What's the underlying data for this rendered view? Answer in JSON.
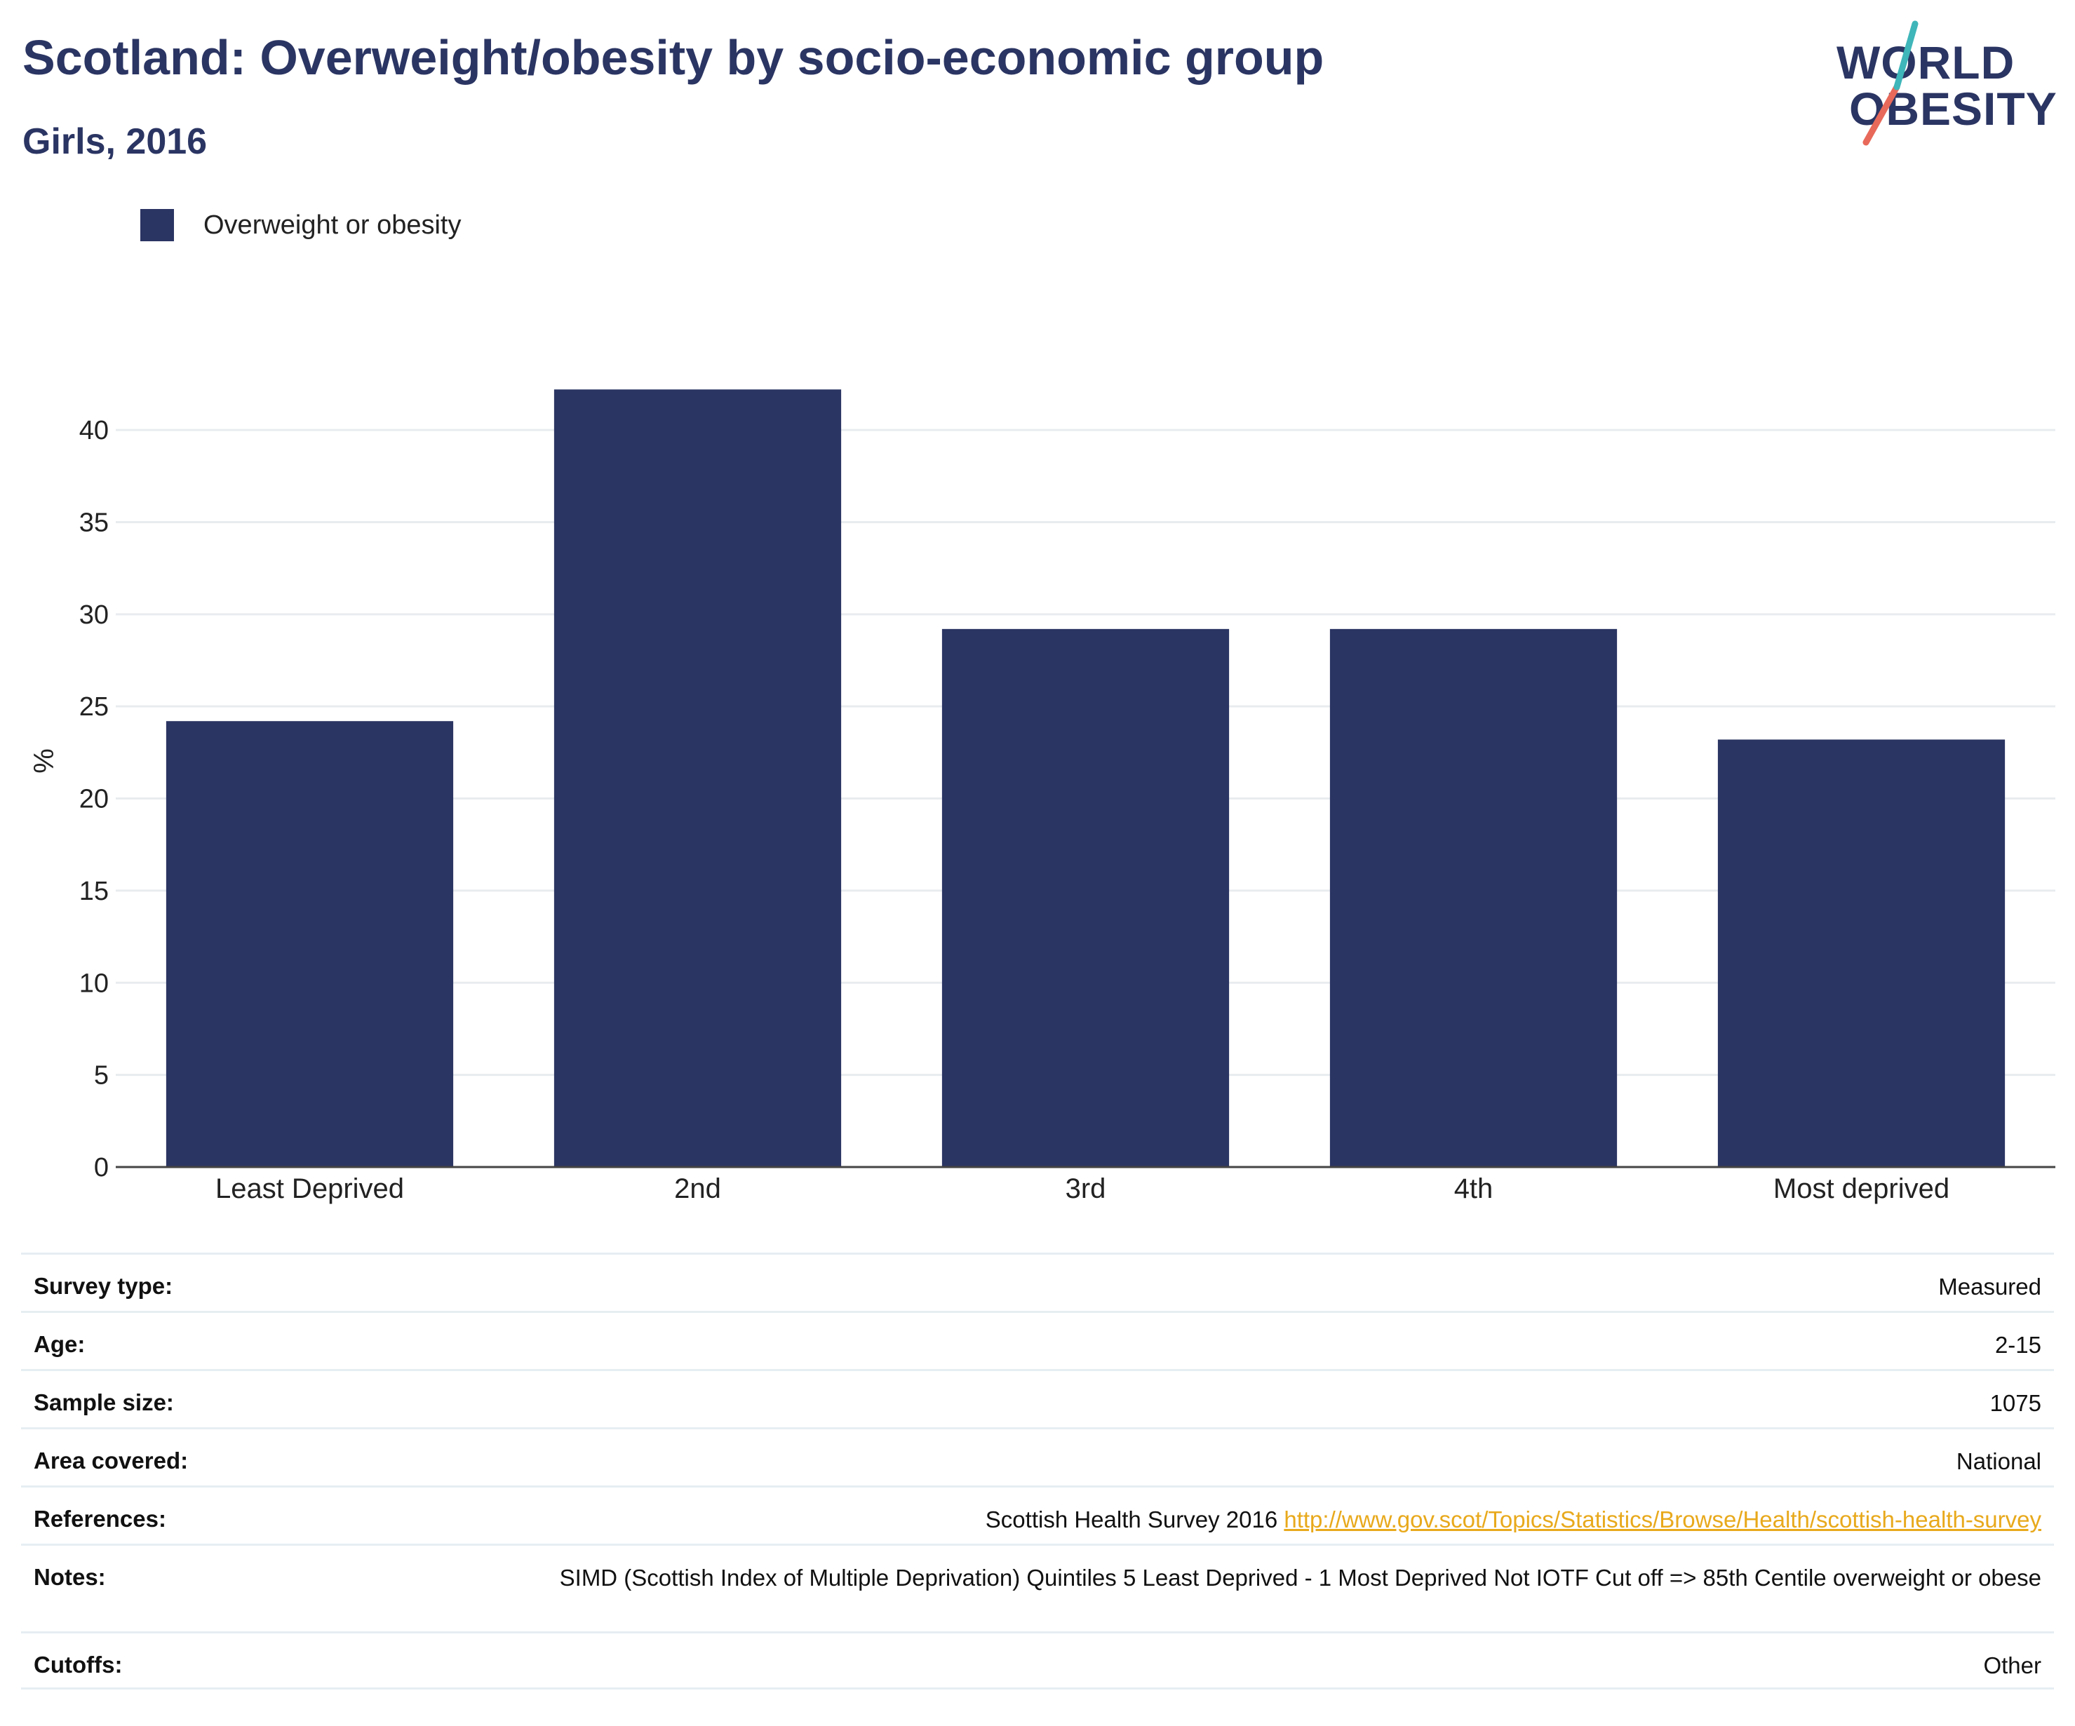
{
  "title": "Scotland: Overweight/obesity by socio-economic group",
  "subtitle": "Girls, 2016",
  "logo": {
    "line1": "WORLD",
    "line2": "OBESITY",
    "accent_teal": "#3fb6b9",
    "accent_coral": "#e8695a"
  },
  "colors": {
    "bar": "#2b3563",
    "brand": "#2b3563",
    "link": "#e8a91c",
    "grid": "#e9ecef"
  },
  "chart_data": {
    "type": "bar",
    "categories": [
      "Least Deprived",
      "2nd",
      "3rd",
      "4th",
      "Most deprived"
    ],
    "series": [
      {
        "name": "Overweight or obesity",
        "values": [
          24.2,
          42.2,
          29.2,
          29.2,
          23.2
        ]
      }
    ],
    "ylabel": "%",
    "xlabel": "",
    "ylim": [
      0,
      44
    ],
    "yticks": [
      0,
      5,
      10,
      15,
      20,
      25,
      30,
      35,
      40
    ],
    "grid": true,
    "legend_position": "top-left"
  },
  "meta": [
    {
      "key": "Survey type:",
      "value": "Measured"
    },
    {
      "key": "Age:",
      "value": "2-15"
    },
    {
      "key": "Sample size:",
      "value": "1075"
    },
    {
      "key": "Area covered:",
      "value": "National"
    },
    {
      "key": "References:",
      "value": "Scottish Health Survey 2016",
      "link": "http://www.gov.scot/Topics/Statistics/Browse/Health/scottish-health-survey"
    },
    {
      "key": "Notes:",
      "value": "SIMD (Scottish Index of Multiple Deprivation) Quintiles 5 Least Deprived - 1 Most Deprived Not IOTF Cut off => 85th Centile overweight or obese"
    },
    {
      "key": "Cutoffs:",
      "value": "Other"
    }
  ]
}
